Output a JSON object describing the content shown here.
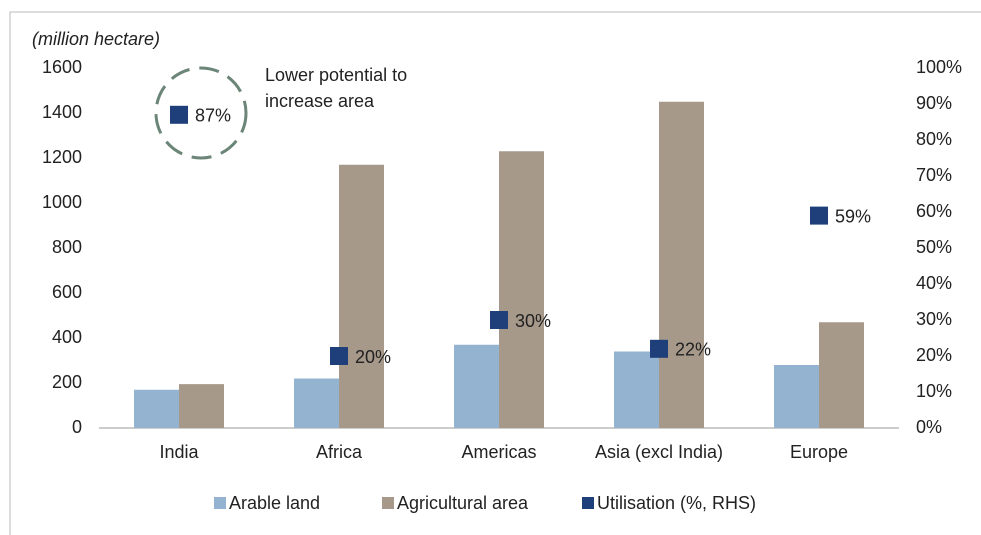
{
  "chart_data": {
    "type": "bar",
    "y_label": "(million hectare)",
    "categories": [
      "India",
      "Africa",
      "Americas",
      "Asia (excl India)",
      "Europe"
    ],
    "series": [
      {
        "name": "Arable land",
        "color": "#94b3d1",
        "values": [
          170,
          220,
          370,
          340,
          280
        ]
      },
      {
        "name": "Agricultural area",
        "color": "#a6998a",
        "values": [
          195,
          1170,
          1230,
          1450,
          470
        ]
      },
      {
        "name": "Utilisation (%, RHS)",
        "color": "#1f3f7a",
        "axis": "y2",
        "marker": "square",
        "values": [
          87,
          20,
          30,
          22,
          59
        ],
        "value_labels": [
          "87%",
          "20%",
          "30%",
          "22%",
          "59%"
        ]
      }
    ],
    "ylim": [
      0,
      1600
    ],
    "yticks": [
      0,
      200,
      400,
      600,
      800,
      1000,
      1200,
      1400,
      1600
    ],
    "y2lim": [
      0,
      100
    ],
    "y2ticks": [
      {
        "value": 0,
        "label": "0%"
      },
      {
        "value": 10,
        "label": "10%"
      },
      {
        "value": 20,
        "label": "20%"
      },
      {
        "value": 30,
        "label": "30%"
      },
      {
        "value": 40,
        "label": "40%"
      },
      {
        "value": 50,
        "label": "50%"
      },
      {
        "value": 60,
        "label": "60%"
      },
      {
        "value": 70,
        "label": "70%"
      },
      {
        "value": 80,
        "label": "80%"
      },
      {
        "value": 90,
        "label": "90%"
      },
      {
        "value": 100,
        "label": "100%"
      }
    ],
    "annotation": [
      "Lower potential to",
      "increase area"
    ],
    "legend": "bottom",
    "grid": false
  }
}
